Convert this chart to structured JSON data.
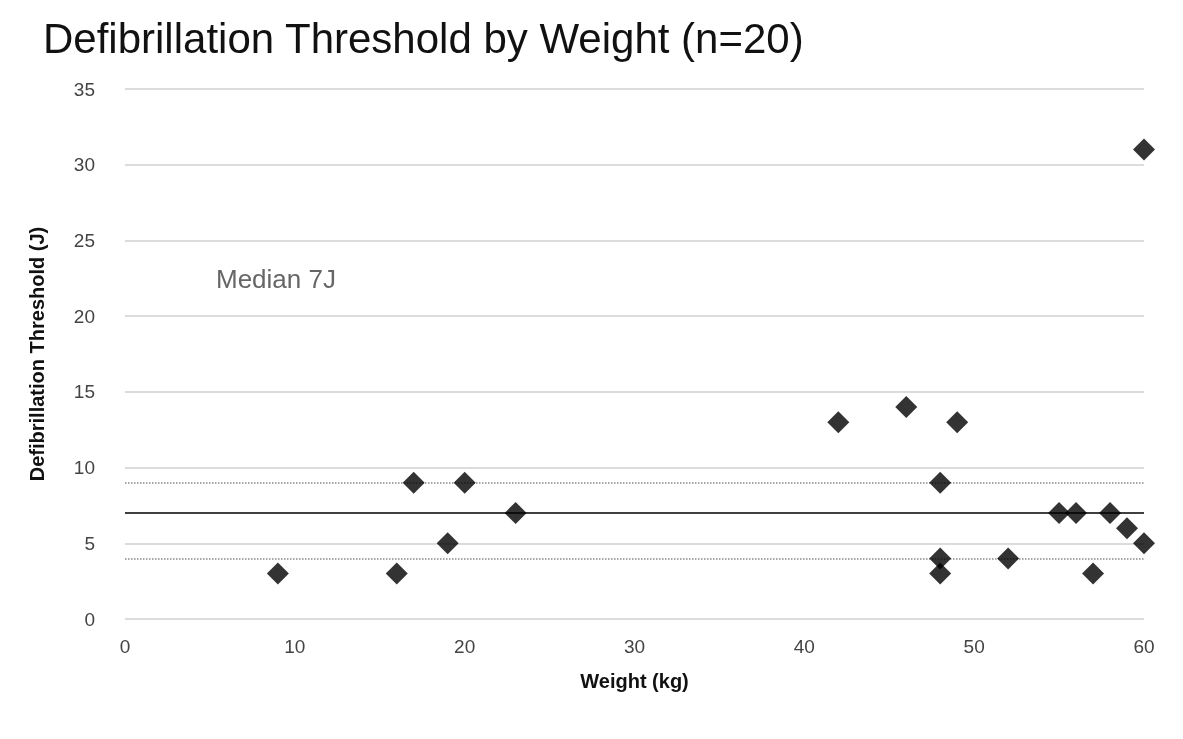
{
  "chart_data": {
    "type": "scatter",
    "title": "Defibrillation Threshold by Weight (n=20)",
    "xlabel": "Weight (kg)",
    "ylabel": "Defibrillation Threshold (J)",
    "x": [
      9,
      16,
      17,
      19,
      20,
      23,
      42,
      46,
      48,
      48,
      48,
      49,
      52,
      55,
      56,
      57,
      58,
      59,
      60,
      60
    ],
    "values": [
      3,
      3,
      9,
      5,
      9,
      7,
      13,
      14,
      9,
      4,
      3,
      13,
      4,
      7,
      7,
      3,
      7,
      6,
      5,
      31
    ],
    "color": "#000000",
    "marker": "diamond",
    "xlim": [
      0,
      60
    ],
    "xticks": [
      0,
      10,
      20,
      30,
      40,
      50,
      60
    ],
    "ylim": [
      0,
      35
    ],
    "yticks": [
      0,
      5,
      10,
      15,
      20,
      25,
      30,
      35
    ],
    "grid": "y",
    "ref_lines": [
      {
        "axis": "y",
        "value": 7,
        "color": "#000000",
        "line_style": "solid"
      },
      {
        "axis": "y",
        "value": 9,
        "color": "#888888",
        "line_style": "dotted"
      },
      {
        "axis": "y",
        "value": 4,
        "color": "#888888",
        "line_style": "dotted"
      }
    ],
    "annotations": [
      "Median 7J"
    ]
  }
}
